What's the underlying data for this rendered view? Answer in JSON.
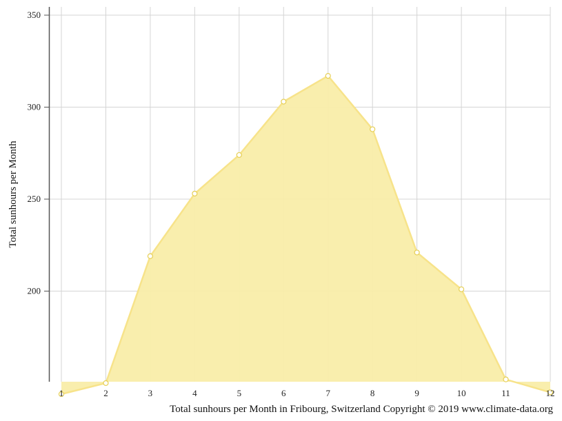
{
  "chart_data": {
    "type": "area",
    "x": [
      1,
      2,
      3,
      4,
      5,
      6,
      7,
      8,
      9,
      10,
      11,
      12
    ],
    "series": [
      {
        "name": "",
        "values": [
          144,
          150,
          219,
          253,
          274,
          303,
          317,
          288,
          221,
          201,
          152,
          145
        ]
      }
    ],
    "ylabel": "Total sunhours per Month",
    "xlabel": "Total sunhours per Month in Fribourg, Switzerland Copyright © 2019 www.climate-data.org",
    "xlim": [
      1,
      12
    ],
    "ylim": [
      143.5,
      355
    ],
    "yticks": [
      200,
      250,
      300,
      350
    ],
    "xticks": [
      1,
      2,
      3,
      4,
      5,
      6,
      7,
      8,
      9,
      10,
      11,
      12
    ],
    "grid": true,
    "fill_color": "#f9eda9",
    "line_color": "#f7e38a",
    "marker_fill": "#ffffff",
    "marker_stroke": "#e6cf55",
    "grid_color": "#d4d4d4"
  }
}
